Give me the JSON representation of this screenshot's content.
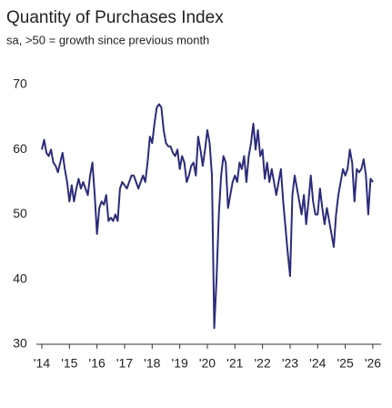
{
  "chart_data": {
    "type": "line",
    "title": "Quantity of Purchases Index",
    "subtitle": "sa, >50 = growth since previous month",
    "x": [
      "2014-01",
      "2014-02",
      "2014-03",
      "2014-04",
      "2014-05",
      "2014-06",
      "2014-07",
      "2014-08",
      "2014-09",
      "2014-10",
      "2014-11",
      "2014-12",
      "2015-01",
      "2015-02",
      "2015-03",
      "2015-04",
      "2015-05",
      "2015-06",
      "2015-07",
      "2015-08",
      "2015-09",
      "2015-10",
      "2015-11",
      "2015-12",
      "2016-01",
      "2016-02",
      "2016-03",
      "2016-04",
      "2016-05",
      "2016-06",
      "2016-07",
      "2016-08",
      "2016-09",
      "2016-10",
      "2016-11",
      "2016-12",
      "2017-01",
      "2017-02",
      "2017-03",
      "2017-04",
      "2017-05",
      "2017-06",
      "2017-07",
      "2017-08",
      "2017-09",
      "2017-10",
      "2017-11",
      "2017-12",
      "2018-01",
      "2018-02",
      "2018-03",
      "2018-04",
      "2018-05",
      "2018-06",
      "2018-07",
      "2018-08",
      "2018-09",
      "2018-10",
      "2018-11",
      "2018-12",
      "2019-01",
      "2019-02",
      "2019-03",
      "2019-04",
      "2019-05",
      "2019-06",
      "2019-07",
      "2019-08",
      "2019-09",
      "2019-10",
      "2019-11",
      "2019-12",
      "2020-01",
      "2020-02",
      "2020-03",
      "2020-04",
      "2020-05",
      "2020-06",
      "2020-07",
      "2020-08",
      "2020-09",
      "2020-10",
      "2020-11",
      "2020-12",
      "2021-01",
      "2021-02",
      "2021-03",
      "2021-04",
      "2021-05",
      "2021-06",
      "2021-07",
      "2021-08",
      "2021-09",
      "2021-10",
      "2021-11",
      "2021-12",
      "2022-01",
      "2022-02",
      "2022-03",
      "2022-04",
      "2022-05",
      "2022-06",
      "2022-07",
      "2022-08",
      "2022-09",
      "2022-10",
      "2022-11",
      "2022-12",
      "2023-01",
      "2023-02",
      "2023-03",
      "2023-04",
      "2023-05",
      "2023-06",
      "2023-07",
      "2023-08",
      "2023-09",
      "2023-10",
      "2023-11",
      "2023-12",
      "2024-01",
      "2024-02",
      "2024-03",
      "2024-04",
      "2024-05",
      "2024-06",
      "2024-07",
      "2024-08",
      "2024-09",
      "2024-10",
      "2024-11",
      "2024-12",
      "2025-01",
      "2025-02",
      "2025-03",
      "2025-04",
      "2025-05",
      "2025-06",
      "2025-07",
      "2025-08",
      "2025-09",
      "2025-10",
      "2025-11",
      "2025-12",
      "2026-01"
    ],
    "series": [
      {
        "color": "#2b2c7c",
        "values": [
          60,
          61.5,
          59.5,
          59,
          60,
          58,
          57.5,
          56.5,
          58,
          59.5,
          57,
          55,
          52,
          54.5,
          52,
          54,
          55.5,
          54,
          55,
          54,
          53,
          56,
          58,
          53,
          47,
          51,
          52,
          51.5,
          53,
          49,
          49.5,
          49,
          50,
          49,
          54,
          55,
          54.5,
          54,
          55,
          56,
          56,
          55,
          54,
          55,
          56,
          55,
          58,
          62,
          61,
          64,
          66.5,
          67,
          66.5,
          63,
          61,
          60.5,
          60.5,
          59.5,
          59,
          60,
          57,
          59,
          58,
          55,
          56,
          57.5,
          58,
          56,
          62,
          60,
          57.5,
          60,
          63,
          61,
          56,
          32.5,
          40,
          50,
          56,
          59,
          58,
          51,
          53,
          55,
          56,
          55,
          58,
          57,
          59,
          55,
          59,
          61,
          64,
          60,
          63,
          59,
          60,
          55.5,
          58,
          55,
          57,
          55,
          53,
          55,
          57,
          52,
          48,
          44,
          40.5,
          53,
          56,
          54,
          52,
          50,
          53,
          48.5,
          52,
          56,
          52,
          50,
          50,
          54,
          51,
          48.5,
          51,
          49,
          47,
          45,
          50,
          53,
          55,
          57,
          56,
          57,
          60,
          58,
          52,
          57,
          56.5,
          57,
          58.5,
          56,
          50,
          55.5,
          55
        ]
      }
    ],
    "xlim": [
      "2014-01",
      "2026-03"
    ],
    "xticks": [
      {
        "value": "2014-01",
        "label": "'14"
      },
      {
        "value": "2015-01",
        "label": "'15"
      },
      {
        "value": "2016-01",
        "label": "'16"
      },
      {
        "value": "2017-01",
        "label": "'17"
      },
      {
        "value": "2018-01",
        "label": "'18"
      },
      {
        "value": "2019-01",
        "label": "'19"
      },
      {
        "value": "2020-01",
        "label": "'20"
      },
      {
        "value": "2021-01",
        "label": "'21"
      },
      {
        "value": "2022-01",
        "label": "'22"
      },
      {
        "value": "2023-01",
        "label": "'23"
      },
      {
        "value": "2024-01",
        "label": "'24"
      },
      {
        "value": "2025-01",
        "label": "'25"
      },
      {
        "value": "2026-01",
        "label": "'26"
      }
    ],
    "ylim": [
      30,
      70
    ],
    "yticks": [
      30,
      40,
      50,
      60,
      70
    ],
    "grid": false
  }
}
